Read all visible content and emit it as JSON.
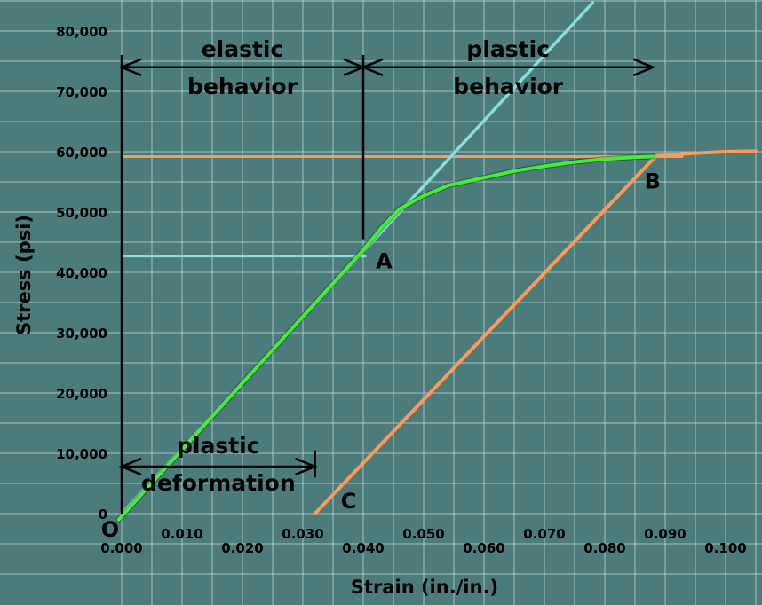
{
  "chart_data": {
    "type": "line",
    "xlabel": "Strain (in./in.)",
    "ylabel": "Stress (psi)",
    "xlim": [
      0,
      0.105
    ],
    "ylim": [
      0,
      80000
    ],
    "grid": true,
    "x_ticks": [
      "0.000",
      "0.010",
      "0.020",
      "0.030",
      "0.040",
      "0.050",
      "0.060",
      "0.070",
      "0.080",
      "0.090",
      "0.100"
    ],
    "y_ticks": [
      "0",
      "10,000",
      "20,000",
      "30,000",
      "40,000",
      "50,000",
      "60,000",
      "70,000",
      "80,000"
    ],
    "series": [
      {
        "color": "#44ee33",
        "points": [
          [
            -0.0005,
            -1000
          ],
          [
            0.04,
            43700
          ],
          [
            0.043,
            47400
          ],
          [
            0.046,
            50500
          ],
          [
            0.05,
            52700
          ],
          [
            0.054,
            54400
          ],
          [
            0.06,
            55700
          ],
          [
            0.065,
            56800
          ],
          [
            0.07,
            57600
          ],
          [
            0.075,
            58300
          ],
          [
            0.08,
            58800
          ],
          [
            0.085,
            59100
          ],
          [
            0.088,
            59200
          ]
        ]
      },
      {
        "color": "#88dddd",
        "points": [
          [
            0.0,
            0
          ],
          [
            0.078,
            84700
          ]
        ]
      },
      {
        "color": "#ff9955",
        "points": [
          [
            0.032,
            0
          ],
          [
            0.0885,
            59300
          ],
          [
            0.094,
            59700
          ],
          [
            0.1,
            60000
          ],
          [
            0.105,
            60100
          ]
        ]
      }
    ],
    "reference_lines": [
      {
        "axis": "y",
        "value": 42700,
        "from": 0,
        "to": 0.0405,
        "color": "#88dddd"
      },
      {
        "axis": "y",
        "value": 59200,
        "from": 0,
        "to": 0.093,
        "color": "#ff9955"
      }
    ],
    "points": [
      {
        "label": "O",
        "x": 0.0,
        "y": 0
      },
      {
        "label": "A",
        "x": 0.0405,
        "y": 42700
      },
      {
        "label": "B",
        "x": 0.0885,
        "y": 59200
      },
      {
        "label": "C",
        "x": 0.032,
        "y": 0
      }
    ],
    "spans": [
      {
        "label_lines": [
          "elastic",
          "behavior"
        ],
        "x0": 0.0,
        "x1": 0.04,
        "y": 74000
      },
      {
        "label_lines": [
          "plastic",
          "behavior"
        ],
        "x0": 0.04,
        "x1": 0.088,
        "y": 74000
      },
      {
        "label_lines": [
          "plastic",
          "deformation"
        ],
        "x0": 0.0,
        "x1": 0.032,
        "y": 7800
      }
    ],
    "colors": {
      "background": "#4b7b7b",
      "grid": "#c9d6d6",
      "green": "#44ee33",
      "cyan": "#88dddd",
      "orange": "#ff9955"
    }
  }
}
